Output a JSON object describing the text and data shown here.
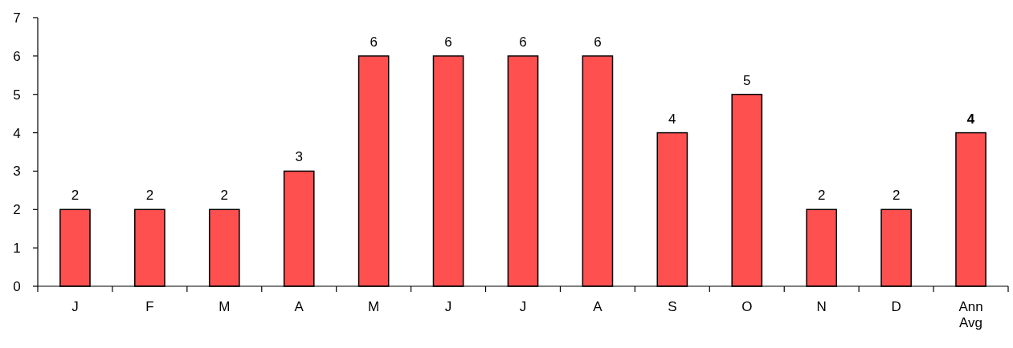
{
  "chart_data": {
    "type": "bar",
    "categories": [
      "J",
      "F",
      "M",
      "A",
      "M",
      "J",
      "J",
      "A",
      "S",
      "O",
      "N",
      "D",
      "Ann Avg"
    ],
    "values": [
      2,
      2,
      2,
      3,
      6,
      6,
      6,
      6,
      4,
      5,
      2,
      2,
      4
    ],
    "color": "#ff5050",
    "ylim": [
      0,
      7
    ],
    "yticks": [
      0,
      1,
      2,
      3,
      4,
      5,
      6,
      7
    ],
    "data_labels": true
  }
}
